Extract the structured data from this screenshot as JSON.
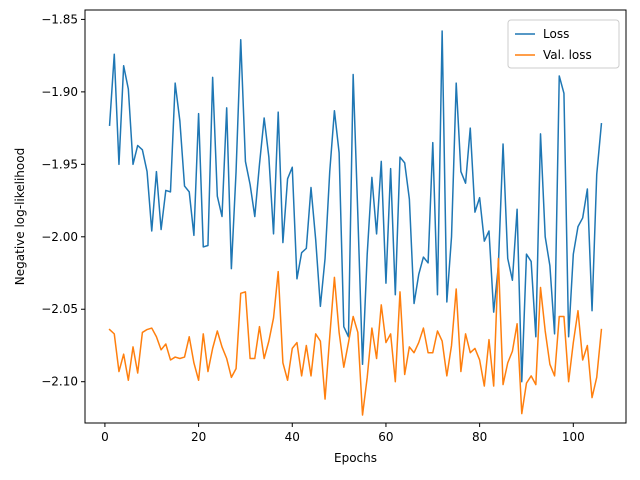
{
  "chart_data": {
    "type": "line",
    "xlabel": "Epochs",
    "ylabel": "Negative log-likelihood",
    "xlim": [
      -4.25,
      111.25
    ],
    "ylim": [
      -2.1285,
      -1.8435
    ],
    "xticks": [
      0,
      20,
      40,
      60,
      80,
      100
    ],
    "xtick_labels": [
      "0",
      "20",
      "40",
      "60",
      "80",
      "100"
    ],
    "yticks": [
      -2.1,
      -2.05,
      -2.0,
      -1.95,
      -1.9,
      -1.85
    ],
    "ytick_labels": [
      "−2.10",
      "−2.05",
      "−2.00",
      "−1.95",
      "−1.90",
      "−1.85"
    ],
    "legend_position": "top-right",
    "grid": false,
    "series": [
      {
        "name": "Loss",
        "color": "#1f77b4",
        "x": [
          1,
          2,
          3,
          4,
          5,
          6,
          7,
          8,
          9,
          10,
          11,
          12,
          13,
          14,
          15,
          16,
          17,
          18,
          19,
          20,
          21,
          22,
          23,
          24,
          25,
          26,
          27,
          28,
          29,
          30,
          31,
          32,
          33,
          34,
          35,
          36,
          37,
          38,
          39,
          40,
          41,
          42,
          43,
          44,
          45,
          46,
          47,
          48,
          49,
          50,
          51,
          52,
          53,
          54,
          55,
          56,
          57,
          58,
          59,
          60,
          61,
          62,
          63,
          64,
          65,
          66,
          67,
          68,
          69,
          70,
          71,
          72,
          73,
          74,
          75,
          76,
          77,
          78,
          79,
          80,
          81,
          82,
          83,
          84,
          85,
          86,
          87,
          88,
          89,
          90,
          91,
          92,
          93,
          94,
          95,
          96,
          97,
          98,
          99,
          100,
          101,
          102,
          103,
          104,
          105,
          106
        ],
        "values": [
          -1.923,
          -1.874,
          -1.95,
          -1.882,
          -1.898,
          -1.95,
          -1.937,
          -1.94,
          -1.955,
          -1.996,
          -1.955,
          -1.995,
          -1.968,
          -1.969,
          -1.894,
          -1.92,
          -1.965,
          -1.969,
          -1.999,
          -1.915,
          -2.007,
          -2.006,
          -1.89,
          -1.972,
          -1.986,
          -1.911,
          -2.022,
          -1.955,
          -1.864,
          -1.948,
          -1.964,
          -1.986,
          -1.95,
          -1.918,
          -1.945,
          -1.998,
          -1.914,
          -2.004,
          -1.96,
          -1.952,
          -2.029,
          -2.011,
          -2.008,
          -1.966,
          -2.002,
          -2.048,
          -2.015,
          -1.955,
          -1.913,
          -1.942,
          -2.062,
          -2.069,
          -1.888,
          -1.985,
          -2.088,
          -2.012,
          -1.959,
          -1.998,
          -1.948,
          -2.032,
          -1.953,
          -2.04,
          -1.945,
          -1.949,
          -1.974,
          -2.046,
          -2.026,
          -2.014,
          -2.018,
          -1.935,
          -2.04,
          -1.858,
          -2.045,
          -2.0,
          -1.894,
          -1.955,
          -1.963,
          -1.925,
          -1.983,
          -1.973,
          -2.003,
          -1.996,
          -2.052,
          -2.02,
          -1.936,
          -2.015,
          -2.03,
          -1.981,
          -2.1,
          -2.012,
          -2.017,
          -2.069,
          -1.929,
          -2.0,
          -2.02,
          -2.067,
          -1.889,
          -1.901,
          -2.069,
          -2.012,
          -1.993,
          -1.987,
          -1.967,
          -2.051,
          -1.957,
          -1.922
        ]
      },
      {
        "name": "Val. loss",
        "color": "#ff7f0e",
        "x": [
          1,
          2,
          3,
          4,
          5,
          6,
          7,
          8,
          9,
          10,
          11,
          12,
          13,
          14,
          15,
          16,
          17,
          18,
          19,
          20,
          21,
          22,
          23,
          24,
          25,
          26,
          27,
          28,
          29,
          30,
          31,
          32,
          33,
          34,
          35,
          36,
          37,
          38,
          39,
          40,
          41,
          42,
          43,
          44,
          45,
          46,
          47,
          48,
          49,
          50,
          51,
          52,
          53,
          54,
          55,
          56,
          57,
          58,
          59,
          60,
          61,
          62,
          63,
          64,
          65,
          66,
          67,
          68,
          69,
          70,
          71,
          72,
          73,
          74,
          75,
          76,
          77,
          78,
          79,
          80,
          81,
          82,
          83,
          84,
          85,
          86,
          87,
          88,
          89,
          90,
          91,
          92,
          93,
          94,
          95,
          96,
          97,
          98,
          99,
          100,
          101,
          102,
          103,
          104,
          105,
          106
        ],
        "values": [
          -2.064,
          -2.067,
          -2.093,
          -2.081,
          -2.099,
          -2.076,
          -2.094,
          -2.066,
          -2.064,
          -2.063,
          -2.069,
          -2.078,
          -2.074,
          -2.085,
          -2.083,
          -2.084,
          -2.083,
          -2.069,
          -2.087,
          -2.099,
          -2.067,
          -2.093,
          -2.077,
          -2.065,
          -2.076,
          -2.084,
          -2.097,
          -2.091,
          -2.039,
          -2.038,
          -2.084,
          -2.084,
          -2.062,
          -2.084,
          -2.072,
          -2.056,
          -2.024,
          -2.087,
          -2.099,
          -2.077,
          -2.073,
          -2.096,
          -2.075,
          -2.096,
          -2.067,
          -2.072,
          -2.112,
          -2.069,
          -2.028,
          -2.066,
          -2.09,
          -2.073,
          -2.055,
          -2.066,
          -2.123,
          -2.097,
          -2.063,
          -2.084,
          -2.047,
          -2.073,
          -2.067,
          -2.1,
          -2.038,
          -2.095,
          -2.076,
          -2.08,
          -2.073,
          -2.063,
          -2.08,
          -2.08,
          -2.065,
          -2.072,
          -2.096,
          -2.075,
          -2.036,
          -2.093,
          -2.067,
          -2.08,
          -2.077,
          -2.085,
          -2.103,
          -2.071,
          -2.103,
          -2.015,
          -2.102,
          -2.087,
          -2.079,
          -2.06,
          -2.122,
          -2.101,
          -2.096,
          -2.102,
          -2.035,
          -2.065,
          -2.088,
          -2.096,
          -2.055,
          -2.055,
          -2.1,
          -2.073,
          -2.051,
          -2.085,
          -2.075,
          -2.111,
          -2.097,
          -2.064
        ]
      }
    ]
  }
}
